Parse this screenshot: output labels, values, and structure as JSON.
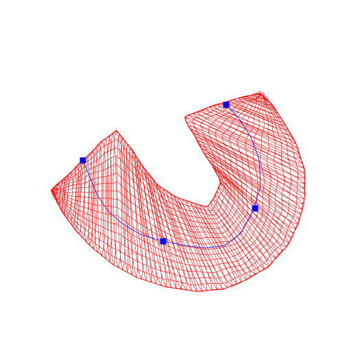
{
  "scene": {
    "background": "#ffffff",
    "mesh_color": "#ff0000",
    "spline_color": "#0000ff",
    "control_point_color": "#0000ff",
    "description_icon": "swept-tube-wireframe",
    "control_points": [
      {
        "name": "control-point-1"
      },
      {
        "name": "control-point-2"
      },
      {
        "name": "control-point-3"
      },
      {
        "name": "control-point-4"
      }
    ]
  }
}
